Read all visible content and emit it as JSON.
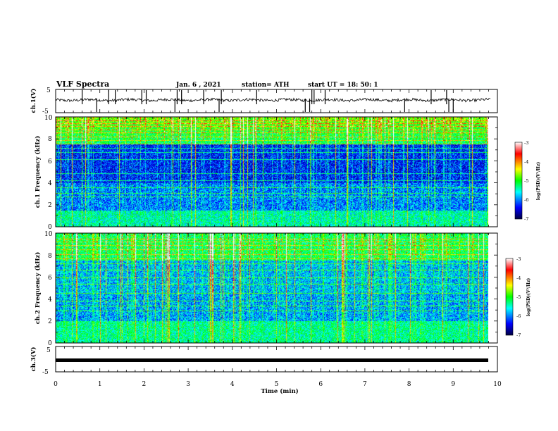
{
  "header": {
    "title": "VLF Spectra",
    "date": "Jan. 6 , 2021",
    "station": "station= ATH",
    "start": "start UT = 18: 50: 1"
  },
  "chart_data": [
    {
      "type": "line",
      "title": "",
      "ylabel": "ch.1(V)",
      "xlim": [
        0,
        10
      ],
      "ylim": [
        -5,
        5
      ],
      "yticks": [
        "5",
        "-5"
      ],
      "series": [
        {
          "baseline_volts": 0.3,
          "spike_times_min": [
            0.6,
            0.93,
            1.2,
            1.35,
            1.95,
            2.05,
            2.7,
            2.75,
            2.85,
            3.35,
            3.7,
            3.75,
            4.55,
            5.65,
            5.75,
            5.8,
            5.85,
            6.1,
            7.9,
            8.5,
            8.85,
            8.9,
            9.0
          ]
        }
      ]
    },
    {
      "type": "heatmap",
      "ylabel": "ch.1 Frequency (kHz)",
      "xlim": [
        0,
        10
      ],
      "ylim": [
        0,
        10
      ],
      "yticks": [
        "0",
        "2",
        "4",
        "6",
        "8",
        "10"
      ],
      "colorbar": {
        "label": "log(PSD)(V²/Hz)",
        "ticks": [
          "-3",
          "-4",
          "-5",
          "-6",
          "-7"
        ],
        "range": [
          -7,
          -3
        ]
      }
    },
    {
      "type": "heatmap",
      "ylabel": "ch.2 Frequency (kHz)",
      "xlim": [
        0,
        10
      ],
      "ylim": [
        0,
        10
      ],
      "yticks": [
        "0",
        "2",
        "4",
        "6",
        "8",
        "10"
      ],
      "colorbar": {
        "label": "log(PSD)(V²/Hz)",
        "ticks": [
          "-3",
          "-4",
          "-5",
          "-6",
          "-7"
        ],
        "range": [
          -7,
          -3
        ]
      }
    },
    {
      "type": "line",
      "ylabel": "ch.3(V)",
      "xlim": [
        0,
        10
      ],
      "ylim": [
        -5,
        5
      ],
      "yticks": [
        "5",
        "-5"
      ],
      "series": [
        {
          "constant_volts": 0
        }
      ]
    }
  ],
  "xaxis": {
    "label": "Time (min)",
    "ticks": [
      "0",
      "1",
      "2",
      "3",
      "4",
      "5",
      "6",
      "7",
      "8",
      "9",
      "10"
    ]
  },
  "colors": {
    "spectrogram_ramp": [
      "#000040",
      "#0000ff",
      "#00ffff",
      "#00ff00",
      "#ffff00",
      "#ff0000",
      "#ffffff"
    ]
  }
}
